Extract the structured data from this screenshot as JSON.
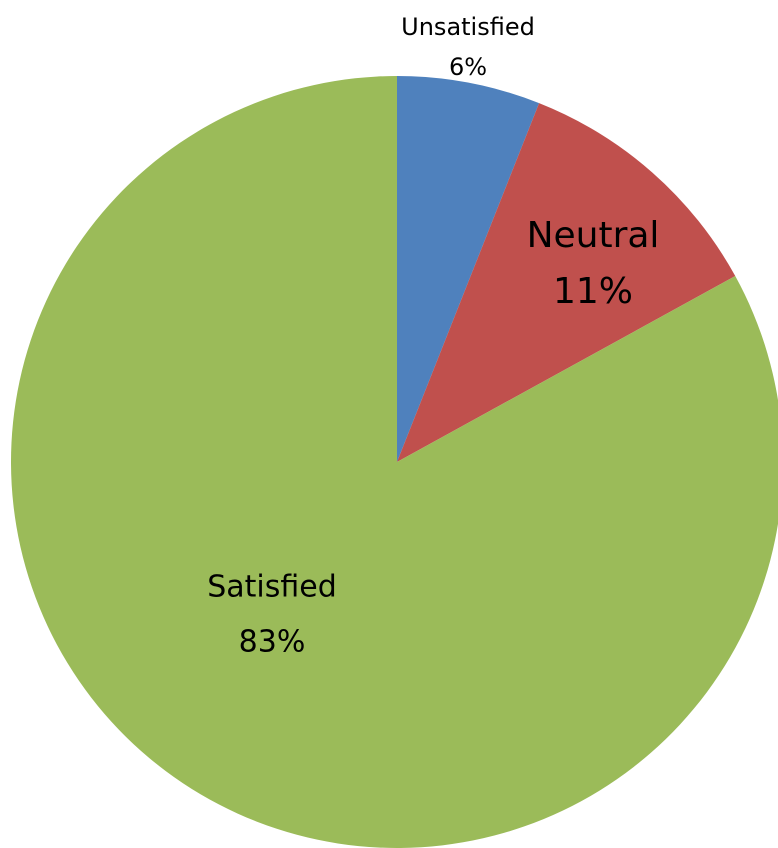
{
  "chart_data": {
    "type": "pie",
    "categories": [
      "Unsatisfied",
      "Neutral",
      "Satisfied"
    ],
    "values": [
      6,
      11,
      83
    ],
    "value_labels": [
      "6%",
      "11%",
      "83%"
    ],
    "colors": [
      "#4f81bd",
      "#c0504d",
      "#9bbb59"
    ]
  }
}
